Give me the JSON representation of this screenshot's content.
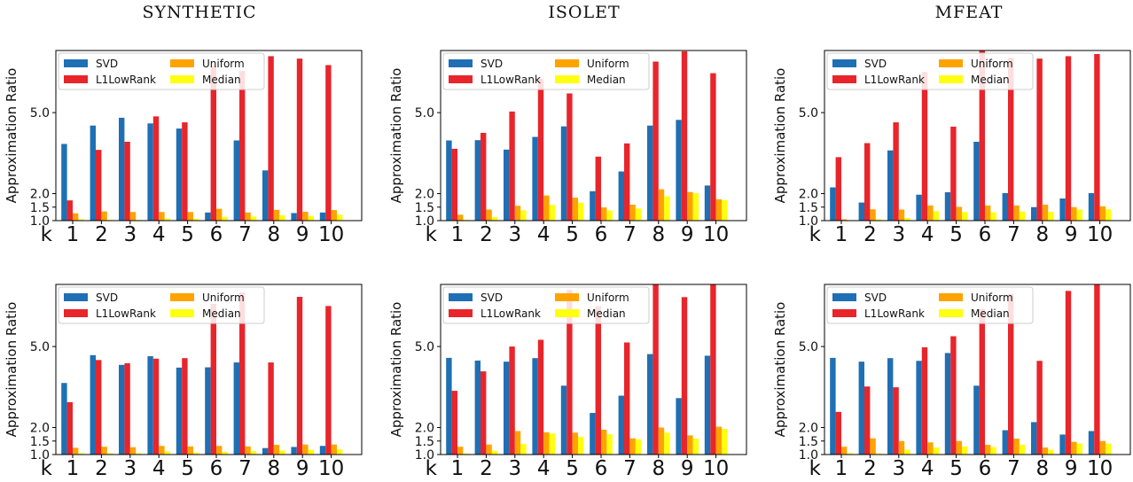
{
  "columns": [
    "SYNTHETIC",
    "ISOLET",
    "MFEAT"
  ],
  "colors": {
    "SVD": "#1f6fb4",
    "L1LowRank": "#e8252b",
    "Uniform": "#ffa300",
    "Median": "#ffff10"
  },
  "chart_data": [
    {
      "type": "bar",
      "title": "SYNTHETIC",
      "ylabel": "Approximation Ratio",
      "xlabel": "k",
      "categories": [
        "1",
        "2",
        "3",
        "4",
        "5",
        "6",
        "7",
        "8",
        "9",
        "10"
      ],
      "ylim": [
        1.0,
        7.3
      ],
      "yticks": [
        "1.0",
        "1.5",
        "2.0",
        "5.0"
      ],
      "legend": "top-left",
      "series": [
        {
          "name": "SVD",
          "values": [
            3.84,
            4.52,
            4.81,
            4.6,
            4.41,
            1.3,
            3.97,
            2.86,
            1.28,
            1.3
          ]
        },
        {
          "name": "L1LowRank",
          "values": [
            1.75,
            3.62,
            3.92,
            4.86,
            4.64,
            6.72,
            6.54,
            7.09,
            7.0,
            6.76
          ]
        },
        {
          "name": "Uniform",
          "values": [
            1.27,
            1.34,
            1.32,
            1.32,
            1.32,
            1.44,
            1.3,
            1.4,
            1.33,
            1.39
          ]
        },
        {
          "name": "Median",
          "values": [
            1.05,
            1.03,
            1.03,
            1.08,
            1.07,
            1.14,
            1.15,
            1.2,
            1.17,
            1.22
          ]
        }
      ]
    },
    {
      "type": "bar",
      "title": "ISOLET",
      "ylabel": "Approximation Ratio",
      "xlabel": "k",
      "categories": [
        "1",
        "2",
        "3",
        "4",
        "5",
        "6",
        "7",
        "8",
        "9",
        "10"
      ],
      "ylim": [
        1.0,
        7.3
      ],
      "yticks": [
        "1.0",
        "1.5",
        "2.0",
        "5.0"
      ],
      "legend": "top-left",
      "series": [
        {
          "name": "SVD",
          "values": [
            3.97,
            3.98,
            3.63,
            4.1,
            4.49,
            2.09,
            2.82,
            4.52,
            4.73,
            2.3
          ]
        },
        {
          "name": "L1LowRank",
          "values": [
            3.66,
            4.25,
            5.04,
            6.26,
            5.71,
            3.37,
            3.86,
            6.89,
            7.27,
            6.46
          ]
        },
        {
          "name": "Uniform",
          "values": [
            1.22,
            1.41,
            1.55,
            1.93,
            1.85,
            1.49,
            1.59,
            2.16,
            2.06,
            1.79
          ]
        },
        {
          "name": "Median",
          "values": [
            1.03,
            1.13,
            1.38,
            1.58,
            1.66,
            1.38,
            1.45,
            1.9,
            2.02,
            1.76
          ]
        }
      ]
    },
    {
      "type": "bar",
      "title": "MFEAT",
      "ylabel": "Approximation Ratio",
      "xlabel": "k",
      "categories": [
        "1",
        "2",
        "3",
        "4",
        "5",
        "6",
        "7",
        "8",
        "9",
        "10"
      ],
      "ylim": [
        1.0,
        7.3
      ],
      "yticks": [
        "1.0",
        "1.5",
        "2.0",
        "5.0"
      ],
      "legend": "top-left",
      "series": [
        {
          "name": "SVD",
          "values": [
            2.23,
            1.67,
            3.6,
            1.96,
            2.05,
            3.92,
            2.02,
            1.5,
            1.82,
            2.02
          ]
        },
        {
          "name": "L1LowRank",
          "values": [
            3.35,
            3.87,
            4.64,
            6.5,
            4.48,
            7.4,
            7.03,
            7.0,
            7.09,
            7.17
          ]
        },
        {
          "name": "Uniform",
          "values": [
            1.05,
            1.42,
            1.41,
            1.56,
            1.51,
            1.56,
            1.56,
            1.59,
            1.5,
            1.53
          ]
        },
        {
          "name": "Median",
          "values": [
            1.02,
            1.05,
            1.1,
            1.35,
            1.32,
            1.31,
            1.34,
            1.33,
            1.41,
            1.42
          ]
        }
      ]
    },
    {
      "type": "bar",
      "title": "",
      "ylabel": "Approximation Ratio",
      "xlabel": "k",
      "categories": [
        "1",
        "2",
        "3",
        "4",
        "5",
        "6",
        "7",
        "8",
        "9",
        "10"
      ],
      "ylim": [
        1.0,
        7.3
      ],
      "yticks": [
        "1.0",
        "1.5",
        "2.0",
        "5.0"
      ],
      "legend": "top-left",
      "series": [
        {
          "name": "SVD",
          "values": [
            3.65,
            4.68,
            4.32,
            4.64,
            4.22,
            4.23,
            4.41,
            1.24,
            1.28,
            1.32
          ]
        },
        {
          "name": "L1LowRank",
          "values": [
            2.94,
            4.5,
            4.38,
            4.55,
            4.57,
            6.58,
            7.01,
            4.41,
            6.84,
            6.5
          ]
        },
        {
          "name": "Uniform",
          "values": [
            1.25,
            1.29,
            1.27,
            1.32,
            1.3,
            1.32,
            1.3,
            1.36,
            1.37,
            1.37
          ]
        },
        {
          "name": "Median",
          "values": [
            1.05,
            1.05,
            1.05,
            1.12,
            1.07,
            1.1,
            1.13,
            1.15,
            1.18,
            1.19
          ]
        }
      ]
    },
    {
      "type": "bar",
      "title": "",
      "ylabel": "Approximation Ratio",
      "xlabel": "k",
      "categories": [
        "1",
        "2",
        "3",
        "4",
        "5",
        "6",
        "7",
        "8",
        "9",
        "10"
      ],
      "ylim": [
        1.0,
        7.3
      ],
      "yticks": [
        "1.0",
        "1.5",
        "2.0",
        "5.0"
      ],
      "legend": "top-left",
      "series": [
        {
          "name": "SVD",
          "values": [
            4.58,
            4.48,
            4.44,
            4.57,
            3.55,
            2.54,
            3.18,
            4.72,
            3.09,
            4.66
          ]
        },
        {
          "name": "L1LowRank",
          "values": [
            3.36,
            4.08,
            5.0,
            5.25,
            7.1,
            6.49,
            5.15,
            7.6,
            6.83,
            7.6
          ]
        },
        {
          "name": "Uniform",
          "values": [
            1.29,
            1.37,
            1.87,
            1.82,
            1.81,
            1.92,
            1.6,
            2.0,
            1.71,
            2.03
          ]
        },
        {
          "name": "Median",
          "values": [
            1.04,
            1.14,
            1.39,
            1.78,
            1.65,
            1.75,
            1.56,
            1.81,
            1.59,
            1.95
          ]
        }
      ]
    },
    {
      "type": "bar",
      "title": "",
      "ylabel": "Approximation Ratio",
      "xlabel": "k",
      "categories": [
        "1",
        "2",
        "3",
        "4",
        "5",
        "6",
        "7",
        "8",
        "9",
        "10"
      ],
      "ylim": [
        1.0,
        7.3
      ],
      "yticks": [
        "1.0",
        "1.5",
        "2.0",
        "5.0"
      ],
      "legend": "top-left",
      "series": [
        {
          "name": "SVD",
          "values": [
            4.58,
            4.44,
            4.57,
            4.47,
            4.76,
            3.55,
            1.9,
            2.2,
            1.74,
            1.87
          ]
        },
        {
          "name": "L1LowRank",
          "values": [
            2.58,
            3.52,
            3.49,
            4.97,
            5.38,
            6.39,
            6.95,
            4.47,
            7.06,
            7.4
          ]
        },
        {
          "name": "Uniform",
          "values": [
            1.29,
            1.6,
            1.5,
            1.45,
            1.5,
            1.36,
            1.59,
            1.26,
            1.47,
            1.5
          ]
        },
        {
          "name": "Median",
          "values": [
            1.05,
            1.04,
            1.18,
            1.26,
            1.3,
            1.28,
            1.36,
            1.18,
            1.41,
            1.41
          ]
        }
      ]
    }
  ]
}
